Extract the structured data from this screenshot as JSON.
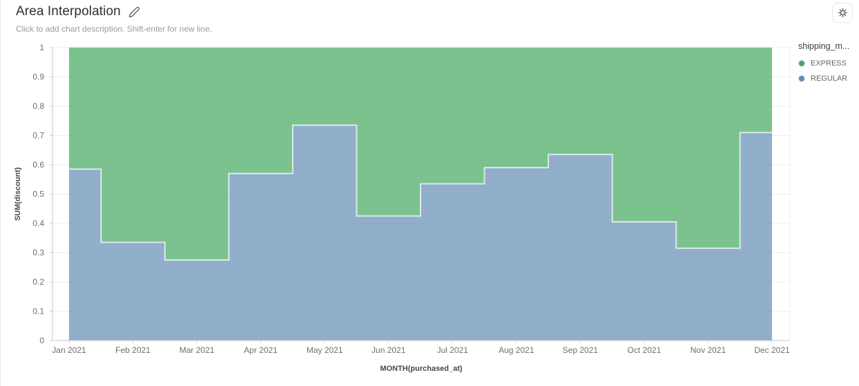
{
  "header": {
    "title": "Area Interpolation",
    "subtitle": "Click to add chart description. Shift-enter for new line."
  },
  "legend": {
    "title": "shipping_m...",
    "items": [
      {
        "label": "EXPRESS",
        "color": "#44a85f"
      },
      {
        "label": "REGULAR",
        "color": "#638bb5"
      }
    ]
  },
  "chart_data": {
    "type": "area",
    "subtype": "stacked-step-area",
    "interpolation": "step-middle",
    "title": "Area Interpolation",
    "xlabel": "MONTH(purchased_at)",
    "ylabel": "SUM(discount)",
    "x": [
      "Jan 2021",
      "Feb 2021",
      "Mar 2021",
      "Apr 2021",
      "May 2021",
      "Jun 2021",
      "Jul 2021",
      "Aug 2021",
      "Sep 2021",
      "Oct 2021",
      "Nov 2021",
      "Dec 2021"
    ],
    "series": [
      {
        "name": "REGULAR",
        "color": "#638bb5",
        "fill_opacity": 0.7,
        "values": [
          0.585,
          0.335,
          0.275,
          0.57,
          0.735,
          0.425,
          0.535,
          0.59,
          0.635,
          0.405,
          0.315,
          0.71
        ]
      },
      {
        "name": "EXPRESS",
        "color": "#44a85f",
        "fill_opacity": 0.7,
        "values": [
          0.415,
          0.665,
          0.725,
          0.43,
          0.265,
          0.575,
          0.465,
          0.41,
          0.365,
          0.595,
          0.685,
          0.29
        ]
      }
    ],
    "stacked": true,
    "stack_total": 1,
    "ylim": [
      0,
      1
    ],
    "yticks": [
      "0",
      "0.1",
      "0.2",
      "0.3",
      "0.4",
      "0.5",
      "0.6",
      "0.7",
      "0.8",
      "0.9",
      "1"
    ],
    "grid": true,
    "legend_position": "right"
  }
}
